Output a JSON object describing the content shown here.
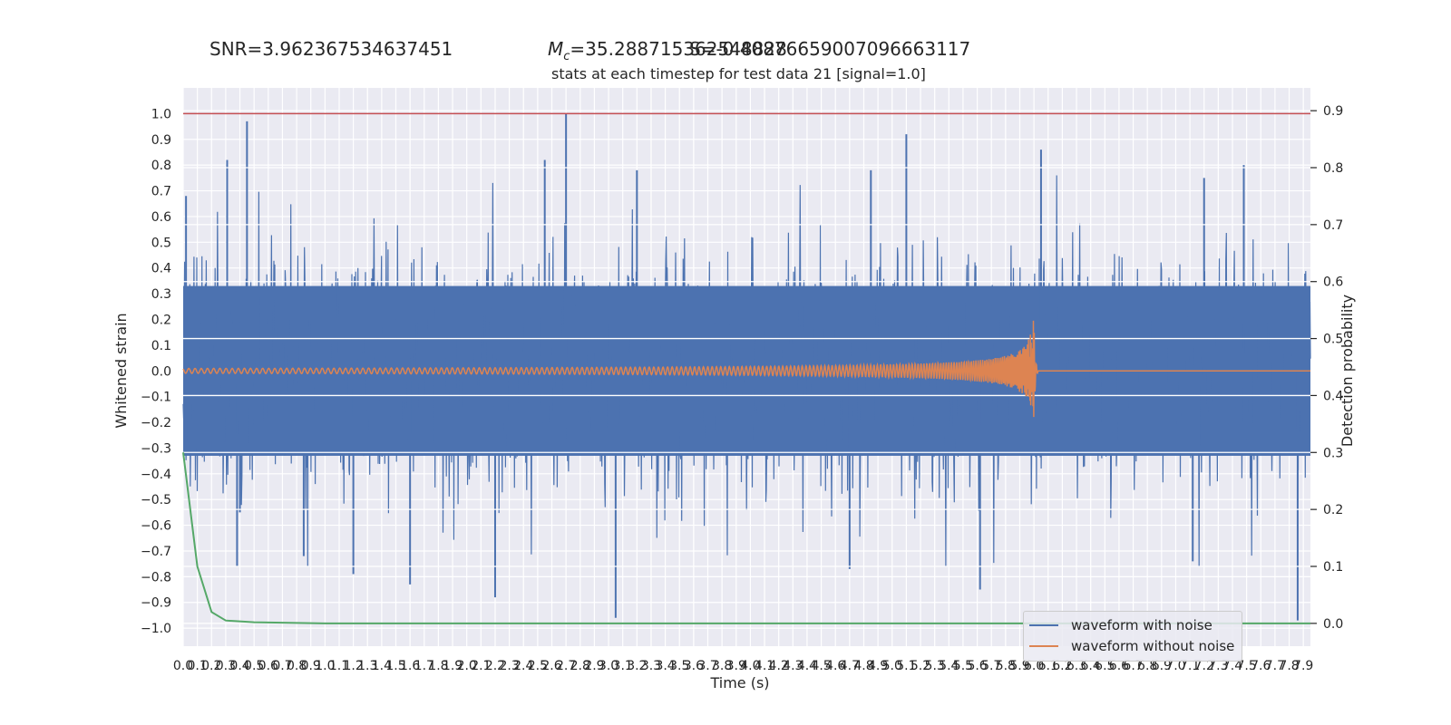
{
  "header": {
    "snr_text": "SNR=3.962367534637451",
    "mc_text": "=35.288715362548828",
    "mc_symbol_main": "M",
    "mc_symbol_sub": "c",
    "overlap_text": "S=-0.40876659007096663117"
  },
  "chart_data": {
    "type": "line",
    "title": "stats at each timestep for test data 21 [signal=1.0]",
    "xlabel": "Time (s)",
    "ylabel": "Whitened strain",
    "ylabel_right": "Detection probability",
    "xlim": [
      0.0,
      7.95
    ],
    "ylim": [
      -1.07,
      1.1
    ],
    "ylim_right": [
      -0.04,
      0.94
    ],
    "grid": true,
    "background": "#eaeaf2",
    "x_tick_labels": [
      "0.0",
      "0.1",
      "0.2",
      "0.3",
      "0.4",
      "0.5",
      "0.6",
      "0.7",
      "0.8",
      "0.9",
      "1.0",
      "1.1",
      "1.2",
      "1.3",
      "1.4",
      "1.5",
      "1.6",
      "1.7",
      "1.8",
      "1.9",
      "2.0",
      "2.1",
      "2.2",
      "2.3",
      "2.4",
      "2.5",
      "2.6",
      "2.7",
      "2.8",
      "2.9",
      "3.0",
      "3.1",
      "3.2",
      "3.3",
      "3.4",
      "3.5",
      "3.6",
      "3.7",
      "3.8",
      "3.9",
      "4.0",
      "4.1",
      "4.2",
      "4.3",
      "4.4",
      "4.5",
      "4.6",
      "4.7",
      "4.8",
      "4.9",
      "5.0",
      "5.1",
      "5.2",
      "5.3",
      "5.4",
      "5.5",
      "5.6",
      "5.7",
      "5.8",
      "5.9",
      "6.0",
      "6.1",
      "6.2",
      "6.3",
      "6.4",
      "6.5",
      "6.6",
      "6.7",
      "6.8",
      "6.9",
      "7.0",
      "7.1",
      "7.2",
      "7.3",
      "7.4",
      "7.5",
      "7.6",
      "7.7",
      "7.8",
      "7.9"
    ],
    "y_tick_labels": [
      "1.0",
      "0.9",
      "0.8",
      "0.7",
      "0.6",
      "0.5",
      "0.4",
      "0.3",
      "0.2",
      "0.1",
      "0.0",
      "−0.1",
      "−0.2",
      "−0.3",
      "−0.4",
      "−0.5",
      "−0.6",
      "−0.7",
      "−0.8",
      "−0.9",
      "−1.0"
    ],
    "y_right_tick_labels": [
      "0.9",
      "0.8",
      "0.7",
      "0.6",
      "0.5",
      "0.4",
      "0.3",
      "0.2",
      "0.1",
      "0.0"
    ],
    "threshold_line": {
      "y": 1.0,
      "color": "#c44e52"
    },
    "series": [
      {
        "name": "waveform with noise",
        "color": "#4c72b0",
        "description": "dense noisy whitened strain, approx range -1.0 to 1.0",
        "band_core": [
          -0.33,
          0.33
        ],
        "spikes": [
          [
            0.02,
            0.68
          ],
          [
            0.45,
            0.97
          ],
          [
            0.31,
            0.82
          ],
          [
            2.7,
            1.0
          ],
          [
            2.55,
            0.82
          ],
          [
            3.2,
            0.78
          ],
          [
            5.1,
            0.92
          ],
          [
            4.85,
            0.78
          ],
          [
            6.05,
            0.86
          ],
          [
            7.48,
            0.8
          ],
          [
            7.2,
            0.75
          ],
          [
            0.38,
            -0.76
          ],
          [
            1.2,
            -0.79
          ],
          [
            1.6,
            -0.83
          ],
          [
            2.2,
            -0.88
          ],
          [
            3.05,
            -0.96
          ],
          [
            4.7,
            -0.77
          ],
          [
            5.62,
            -0.85
          ],
          [
            7.12,
            -0.74
          ],
          [
            7.86,
            -0.97
          ],
          [
            0.4,
            -0.55
          ],
          [
            0.85,
            -0.72
          ]
        ]
      },
      {
        "name": "waveform without noise",
        "color": "#dd8452",
        "description": "chirp signal, merger near t=6.0 s with peak amplitude ~0.22",
        "merger_time": 6.0,
        "peak_amplitude": 0.22
      },
      {
        "name": "detection probability",
        "color": "#55a868",
        "axis": "right",
        "points": [
          [
            0.0,
            0.3
          ],
          [
            0.05,
            0.2
          ],
          [
            0.1,
            0.1
          ],
          [
            0.2,
            0.02
          ],
          [
            0.3,
            0.005
          ],
          [
            0.5,
            0.002
          ],
          [
            1.0,
            0.0
          ],
          [
            2.0,
            0.0
          ],
          [
            3.0,
            0.0
          ],
          [
            4.0,
            0.0
          ],
          [
            5.0,
            0.0
          ],
          [
            6.0,
            0.0
          ],
          [
            7.0,
            0.0
          ],
          [
            7.95,
            0.0
          ]
        ]
      }
    ]
  }
}
